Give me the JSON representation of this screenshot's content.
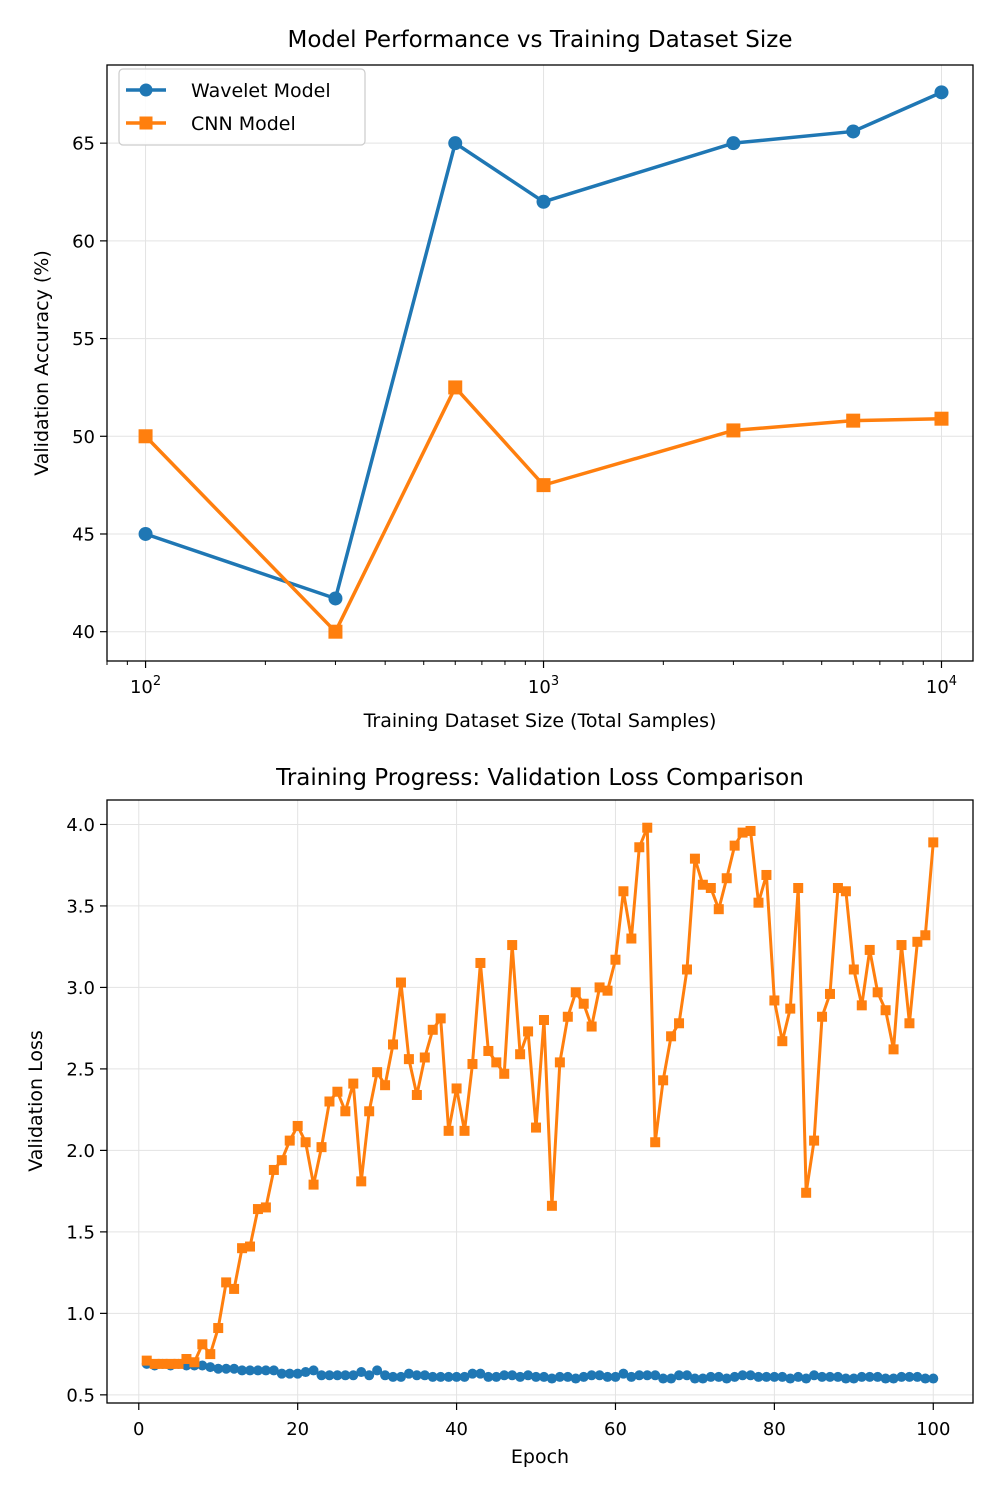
{
  "chart_data": [
    {
      "type": "line",
      "title": "Model Performance vs Training Dataset Size",
      "xlabel": "Training Dataset Size (Total Samples)",
      "ylabel": "Validation Accuracy (%)",
      "xscale": "log",
      "xlim": [
        80,
        12000
      ],
      "ylim": [
        38.5,
        69
      ],
      "xticks": [
        100,
        1000,
        10000
      ],
      "xtick_labels": [
        {
          "base": "10",
          "exp": "2"
        },
        {
          "base": "10",
          "exp": "3"
        },
        {
          "base": "10",
          "exp": "4"
        }
      ],
      "yticks": [
        40,
        45,
        50,
        55,
        60,
        65
      ],
      "ytick_labels": [
        "40",
        "45",
        "50",
        "55",
        "60",
        "65"
      ],
      "grid": true,
      "legend": "top-left",
      "x": [
        100,
        300,
        600,
        1000,
        3000,
        6000,
        10000
      ],
      "series": [
        {
          "name": "Wavelet Model",
          "color": "#1f77b4",
          "marker": "circle",
          "values": [
            45.0,
            41.7,
            65.0,
            62.0,
            65.0,
            65.6,
            67.6
          ]
        },
        {
          "name": "CNN Model",
          "color": "#ff7f0e",
          "marker": "square",
          "values": [
            50.0,
            40.0,
            52.5,
            47.5,
            50.3,
            50.8,
            50.9
          ]
        }
      ]
    },
    {
      "type": "line",
      "title": "Training Progress: Validation Loss Comparison",
      "xlabel": "Epoch",
      "ylabel": "Validation Loss",
      "xlim": [
        -4,
        105
      ],
      "ylim": [
        0.45,
        4.15
      ],
      "xticks": [
        0,
        20,
        40,
        60,
        80,
        100
      ],
      "xtick_labels": [
        "0",
        "20",
        "40",
        "60",
        "80",
        "100"
      ],
      "yticks": [
        0.5,
        1.0,
        1.5,
        2.0,
        2.5,
        3.0,
        3.5,
        4.0
      ],
      "ytick_labels": [
        "0.5",
        "1.0",
        "1.5",
        "2.0",
        "2.5",
        "3.0",
        "3.5",
        "4.0"
      ],
      "grid": true,
      "legend": "none",
      "x_start": 1,
      "x_step": 1,
      "series": [
        {
          "color": "#1f77b4",
          "marker": "circle",
          "values": [
            0.69,
            0.68,
            0.69,
            0.68,
            0.69,
            0.68,
            0.68,
            0.68,
            0.67,
            0.66,
            0.66,
            0.66,
            0.65,
            0.65,
            0.65,
            0.65,
            0.65,
            0.63,
            0.63,
            0.63,
            0.64,
            0.65,
            0.62,
            0.62,
            0.62,
            0.62,
            0.62,
            0.64,
            0.62,
            0.65,
            0.62,
            0.61,
            0.61,
            0.63,
            0.62,
            0.62,
            0.61,
            0.61,
            0.61,
            0.61,
            0.61,
            0.63,
            0.63,
            0.61,
            0.61,
            0.62,
            0.62,
            0.61,
            0.62,
            0.61,
            0.61,
            0.6,
            0.61,
            0.61,
            0.6,
            0.61,
            0.62,
            0.62,
            0.61,
            0.61,
            0.63,
            0.61,
            0.62,
            0.62,
            0.62,
            0.6,
            0.6,
            0.62,
            0.62,
            0.6,
            0.6,
            0.61,
            0.61,
            0.6,
            0.61,
            0.62,
            0.62,
            0.61,
            0.61,
            0.61,
            0.61,
            0.6,
            0.61,
            0.6,
            0.62,
            0.61,
            0.61,
            0.61,
            0.6,
            0.6,
            0.61,
            0.61,
            0.61,
            0.6,
            0.6,
            0.61,
            0.61,
            0.61,
            0.6,
            0.6
          ]
        },
        {
          "color": "#ff7f0e",
          "marker": "square",
          "values": [
            0.71,
            0.69,
            0.69,
            0.69,
            0.69,
            0.72,
            0.7,
            0.81,
            0.75,
            0.91,
            1.19,
            1.15,
            1.4,
            1.41,
            1.64,
            1.65,
            1.88,
            1.94,
            2.06,
            2.15,
            2.05,
            1.79,
            2.02,
            2.3,
            2.36,
            2.24,
            2.41,
            1.81,
            2.24,
            2.48,
            2.4,
            2.65,
            3.03,
            2.56,
            2.34,
            2.57,
            2.74,
            2.81,
            2.12,
            2.38,
            2.12,
            2.53,
            3.15,
            2.61,
            2.54,
            2.47,
            3.26,
            2.59,
            2.73,
            2.14,
            2.8,
            1.66,
            2.54,
            2.82,
            2.97,
            2.9,
            2.76,
            3.0,
            2.98,
            3.17,
            3.59,
            3.3,
            3.86,
            3.98,
            2.05,
            2.43,
            2.7,
            2.78,
            3.11,
            3.79,
            3.63,
            3.61,
            3.48,
            3.67,
            3.87,
            3.95,
            3.96,
            3.52,
            3.69,
            2.92,
            2.67,
            2.87,
            3.61,
            1.74,
            2.06,
            2.82,
            2.96,
            3.61,
            3.59,
            3.11,
            2.89,
            3.23,
            2.97,
            2.86,
            2.62,
            3.26,
            2.78,
            3.28,
            3.32,
            3.89
          ]
        }
      ]
    }
  ]
}
